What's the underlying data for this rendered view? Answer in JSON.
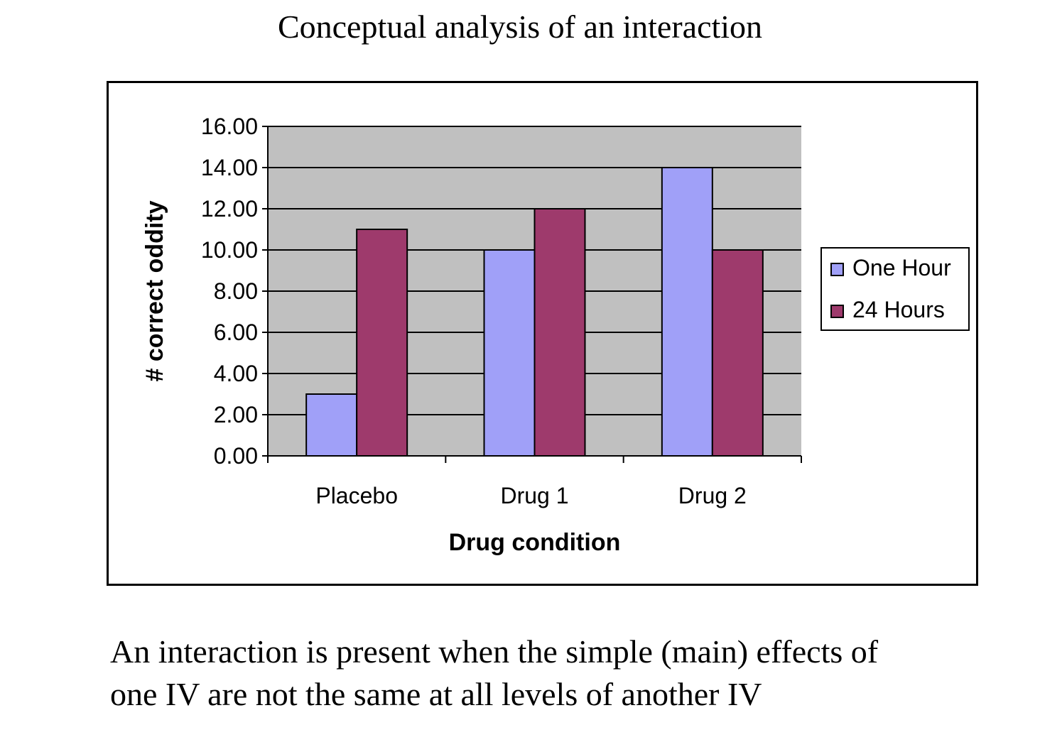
{
  "title": "Conceptual analysis of an interaction",
  "caption": {
    "line1": "An interaction is present when the simple (main) effects of",
    "line2": "one IV are not the same at all levels of another IV"
  },
  "colors": {
    "plot_background": "#c0c0c0",
    "one_hour": "#a0a0f8",
    "twenty_four_hours": "#9e3a6c",
    "gridline": "#000000"
  },
  "chart_data": {
    "type": "bar",
    "categories": [
      "Placebo",
      "Drug 1",
      "Drug 2"
    ],
    "series": [
      {
        "name": "One Hour",
        "values": [
          3,
          10,
          14
        ]
      },
      {
        "name": "24 Hours",
        "values": [
          11,
          12,
          10
        ]
      }
    ],
    "xlabel": "Drug condition",
    "ylabel": "# correct oddity",
    "ylim": [
      0,
      16
    ],
    "yticks": [
      "0.00",
      "2.00",
      "4.00",
      "6.00",
      "8.00",
      "10.00",
      "12.00",
      "14.00",
      "16.00"
    ],
    "grid": true,
    "legend_position": "right"
  }
}
